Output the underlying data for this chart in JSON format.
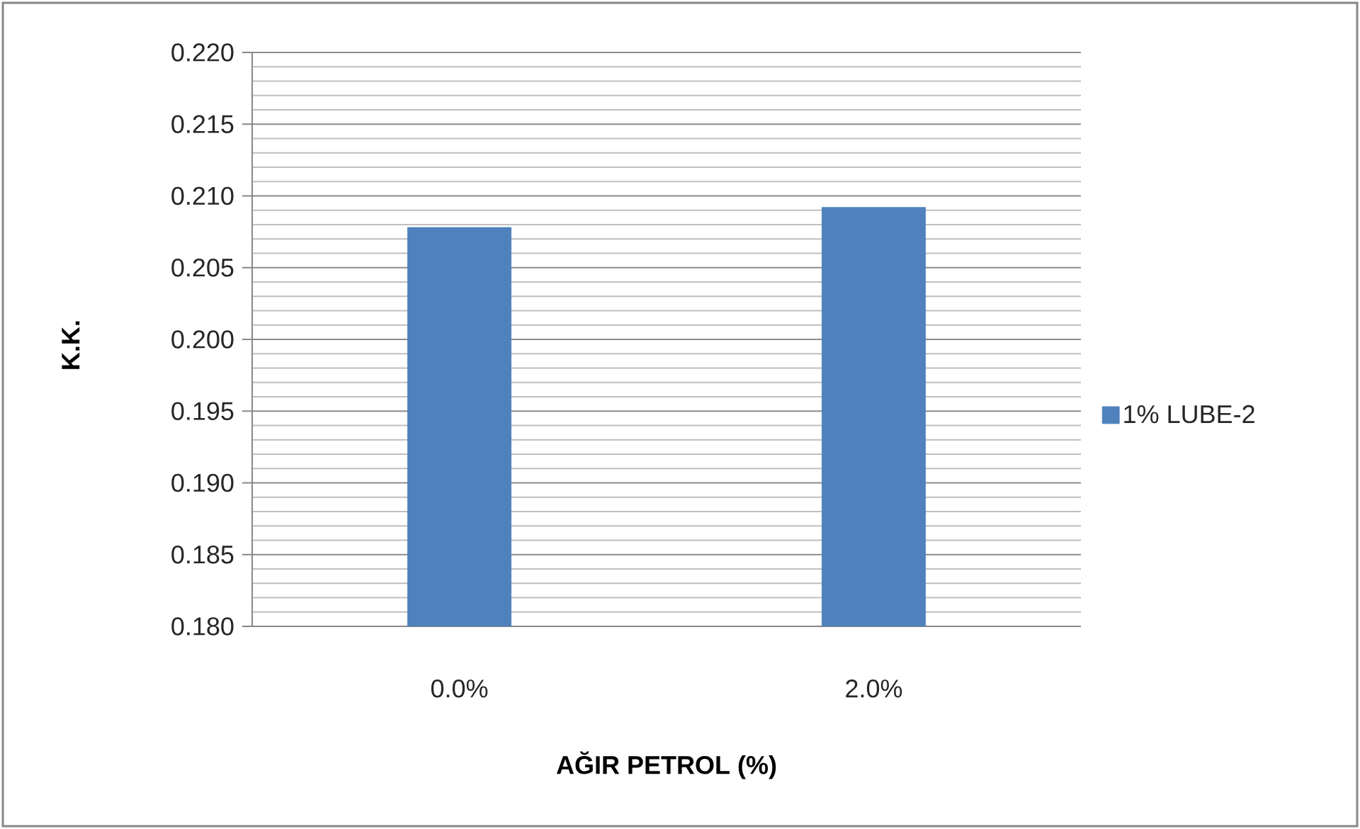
{
  "chart_data": {
    "type": "bar",
    "xlabel": "AĞIR PETROL (%)",
    "ylabel": "K.K.",
    "categories": [
      "0.0%",
      "2.0%"
    ],
    "series": [
      {
        "name": "1% LUBE-2",
        "color": "#4f81bd",
        "values": [
          0.2078,
          0.2092
        ]
      }
    ],
    "ylim": [
      0.18,
      0.22
    ],
    "yticks": [
      {
        "value": 0.18,
        "label": "0.180"
      },
      {
        "value": 0.185,
        "label": "0.185"
      },
      {
        "value": 0.19,
        "label": "0.190"
      },
      {
        "value": 0.195,
        "label": "0.195"
      },
      {
        "value": 0.2,
        "label": "0.200"
      },
      {
        "value": 0.205,
        "label": "0.205"
      },
      {
        "value": 0.21,
        "label": "0.210"
      },
      {
        "value": 0.215,
        "label": "0.215"
      },
      {
        "value": 0.22,
        "label": "0.220"
      }
    ],
    "grid": "y",
    "legend": "right"
  }
}
